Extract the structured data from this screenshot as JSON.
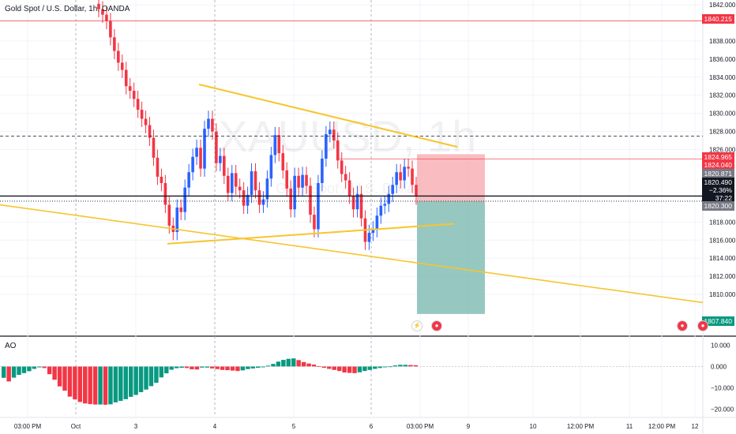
{
  "header": {
    "symbol_title": "Gold Spot / U.S. Dollar, 1h, OANDA",
    "watermark_symbol": "XAUUSD, 1h",
    "watermark_name": "Gold Spot / U.S. Dollar"
  },
  "indicator": {
    "label": "AO"
  },
  "price_badges": {
    "resistance": "1840.215",
    "tp_zone_top": "1824.965",
    "stop_level": "1824.040",
    "entry_level": "1820.871",
    "last_price": "1820.490",
    "change_pct": "−2.36%",
    "countdown": "37:22",
    "current_line": "1820.300",
    "target": "1807.840"
  },
  "colors": {
    "up": "#2962ff",
    "down": "#f23645",
    "trendline": "#f7c52d",
    "ao_up": "#089981",
    "ao_down": "#f23645",
    "stop_zone": "#f7a6ab",
    "target_zone": "#7cbab1"
  },
  "chart_data": [
    {
      "type": "candlestick",
      "title": "Gold Spot / U.S. Dollar, 1h, OANDA",
      "ylim": [
        1806,
        1842
      ],
      "y_ticks": [
        "1842.000",
        "1838.000",
        "1836.000",
        "1834.000",
        "1832.000",
        "1830.000",
        "1828.000",
        "1826.000",
        "1818.000",
        "1816.000",
        "1814.000",
        "1812.000",
        "1810.000"
      ],
      "x_ticks": [
        "03:00 PM",
        "Oct",
        "3",
        "4",
        "5",
        "6",
        "03:00 PM",
        "9",
        "10",
        "12:00 PM",
        "11",
        "12:00 PM",
        "12"
      ],
      "close_series": [
        1841.5,
        1840.9,
        1840.2,
        1838.4,
        1836.9,
        1835.6,
        1834.8,
        1833.0,
        1832.5,
        1831.6,
        1830.4,
        1829.4,
        1828.7,
        1827.3,
        1825.1,
        1823.0,
        1822.3,
        1819.9,
        1817.6,
        1816.9,
        1819.6,
        1819.1,
        1821.8,
        1823.5,
        1825.2,
        1826.2,
        1823.9,
        1828.3,
        1829.4,
        1828.0,
        1824.5,
        1825.3,
        1823.1,
        1821.2,
        1823.4,
        1821.9,
        1821.5,
        1819.8,
        1821.0,
        1823.6,
        1821.5,
        1819.9,
        1820.5,
        1822.8,
        1825.4,
        1827.6,
        1825.6,
        1823.7,
        1821.7,
        1819.4,
        1823.1,
        1821.8,
        1823.2,
        1822.0,
        1818.8,
        1817.2,
        1822.3,
        1825.0,
        1827.7,
        1828.2,
        1827.0,
        1824.8,
        1823.3,
        1822.6,
        1820.9,
        1819.4,
        1821.1,
        1818.4,
        1815.8,
        1816.8,
        1817.2,
        1818.7,
        1819.8,
        1820.0,
        1821.1,
        1822.1,
        1823.5,
        1822.6,
        1824.1,
        1823.9,
        1822.1,
        1820.8
      ],
      "trendlines": [
        {
          "points": [
            [
              1833.2,
              "start"
            ],
            [
              1826.3,
              "end"
            ]
          ]
        },
        {
          "points": [
            [
              1815.6,
              "start"
            ],
            [
              1817.8,
              "end"
            ]
          ]
        },
        {
          "points": [
            [
              1819.9,
              "start"
            ],
            [
              1809.1,
              "end"
            ]
          ]
        }
      ],
      "levels": {
        "resistance": 1840.215,
        "dashed_1": 1827.5,
        "stop": 1824.965,
        "entry": 1820.871,
        "current": 1820.3,
        "target": 1807.84
      }
    },
    {
      "type": "bar",
      "title": "AO",
      "ylim": [
        -22,
        12
      ],
      "y_ticks": [
        "10.000",
        "0.000",
        "−10.000",
        "−20.000"
      ],
      "values": [
        -5.3,
        -7.0,
        -5.2,
        -3.9,
        -3.1,
        -2.2,
        -1.1,
        -0.4,
        -0.7,
        -3.6,
        -6.2,
        -9.3,
        -11.3,
        -14.1,
        -15.4,
        -16.6,
        -17.3,
        -17.6,
        -17.8,
        -17.8,
        -17.9,
        -17.7,
        -16.8,
        -16.1,
        -15.3,
        -14.2,
        -13.3,
        -12.0,
        -10.8,
        -9.2,
        -7.6,
        -5.1,
        -3.2,
        -1.5,
        -0.8,
        -0.6,
        -0.7,
        -1.3,
        -1.4,
        -0.5,
        -0.5,
        -0.9,
        -1.2,
        -1.6,
        -1.7,
        -1.9,
        -2.1,
        -1.8,
        -1.2,
        -0.9,
        -0.6,
        -0.2,
        0.4,
        1.2,
        2.3,
        3.1,
        3.6,
        3.8,
        3.0,
        2.1,
        1.4,
        0.9,
        0.2,
        -0.6,
        -1.1,
        -1.6,
        -2.1,
        -2.8,
        -3.0,
        -3.1,
        -2.7,
        -2.1,
        -1.6,
        -1.1,
        -0.7,
        -0.3,
        0.1,
        0.5,
        0.8,
        0.8,
        0.7,
        0.6
      ]
    }
  ]
}
